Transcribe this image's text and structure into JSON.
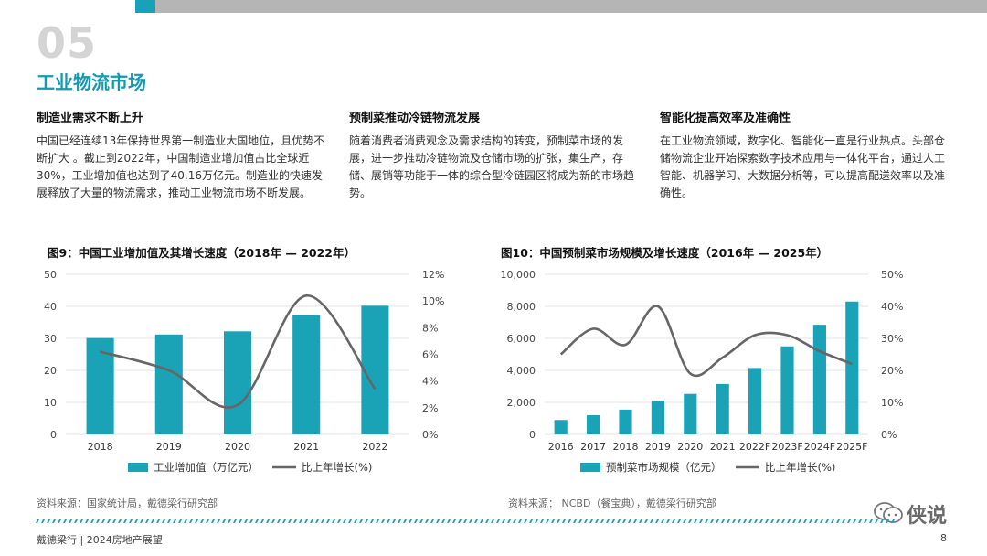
{
  "header": {
    "section_number": "05",
    "section_title": "工业物流市场"
  },
  "columns": [
    {
      "title": "制造业需求不断上升",
      "body": "中国已经连续13年保持世界第一制造业大国地位，且优势不断扩大 。截止到2022年，中国制造业增加值占比全球近30%，工业增加值也达到了40.16万亿元。制造业的快速发展释放了大量的物流需求，推动工业物流市场不断发展。"
    },
    {
      "title": "预制菜推动冷链物流发展",
      "body": "随着消费者消费观念及需求结构的转变，预制菜市场的发展，进一步推动冷链物流及仓储市场的扩张，集生产，存储、展销等功能于一体的综合型冷链园区将成为新的市场趋势。"
    },
    {
      "title": "智能化提高效率及准确性",
      "body": "在工业物流领域，数字化、智能化一直是行业热点。头部仓储物流企业开始探索数字技术应用与一体化平台，通过人工智能、机器学习、大数据分析等，可以提高配送效率以及准确性。"
    }
  ],
  "colors": {
    "bar": "#1aa3b6",
    "line": "#666666",
    "accent": "#139ab0",
    "grid": "#e3e3e3"
  },
  "chart_data": [
    {
      "type": "bar+line",
      "title": "图9：中国工业增加值及其增长速度（2018年 — 2022年）",
      "categories": [
        "2018",
        "2019",
        "2020",
        "2021",
        "2022"
      ],
      "y_ticks_left": [
        "0",
        "10",
        "20",
        "30",
        "40",
        "50"
      ],
      "y_ticks_right": [
        "0%",
        "2%",
        "4%",
        "6%",
        "8%",
        "10%",
        "12%"
      ],
      "ylim_left": [
        0,
        50
      ],
      "ylim_right": [
        0,
        12
      ],
      "series": [
        {
          "name": "工业增加值（万亿元）",
          "type": "bar",
          "values": [
            30.1,
            31.2,
            32.2,
            37.3,
            40.2
          ]
        },
        {
          "name": "比上年增长(%)",
          "type": "line",
          "values": [
            6.2,
            4.8,
            2.2,
            10.4,
            3.4
          ]
        }
      ],
      "source": "资料来源：国家统计局，戴德梁行研究部",
      "legend_position": "bottom"
    },
    {
      "type": "bar+line",
      "title": "图10：中国预制菜市场规模及增长速度（2016年 — 2025年）",
      "categories": [
        "2016",
        "2017",
        "2018",
        "2019",
        "2020",
        "2021",
        "2022F",
        "2023F",
        "2024F",
        "2025F"
      ],
      "y_ticks_left": [
        "0",
        "2,000",
        "4,000",
        "6,000",
        "8,000",
        "10,000"
      ],
      "y_ticks_right": [
        "0%",
        "10%",
        "20%",
        "30%",
        "40%",
        "50%"
      ],
      "ylim_left": [
        0,
        10000
      ],
      "ylim_right": [
        0,
        50
      ],
      "series": [
        {
          "name": "预制菜市场规模（亿元）",
          "type": "bar",
          "values": [
            900,
            1200,
            1550,
            2100,
            2530,
            3150,
            4150,
            5500,
            6850,
            8300
          ]
        },
        {
          "name": "比上年增长(%)",
          "type": "line",
          "values": [
            25,
            33,
            28,
            40,
            19,
            24,
            31,
            31,
            26,
            22
          ]
        }
      ],
      "source": "资料来源： NCBD（餐宝典），戴德梁行研究部",
      "legend_position": "bottom"
    }
  ],
  "footer": {
    "left": "戴德梁行 | 2024房地产展望",
    "page": "8"
  },
  "watermark": {
    "text": "侠说"
  }
}
